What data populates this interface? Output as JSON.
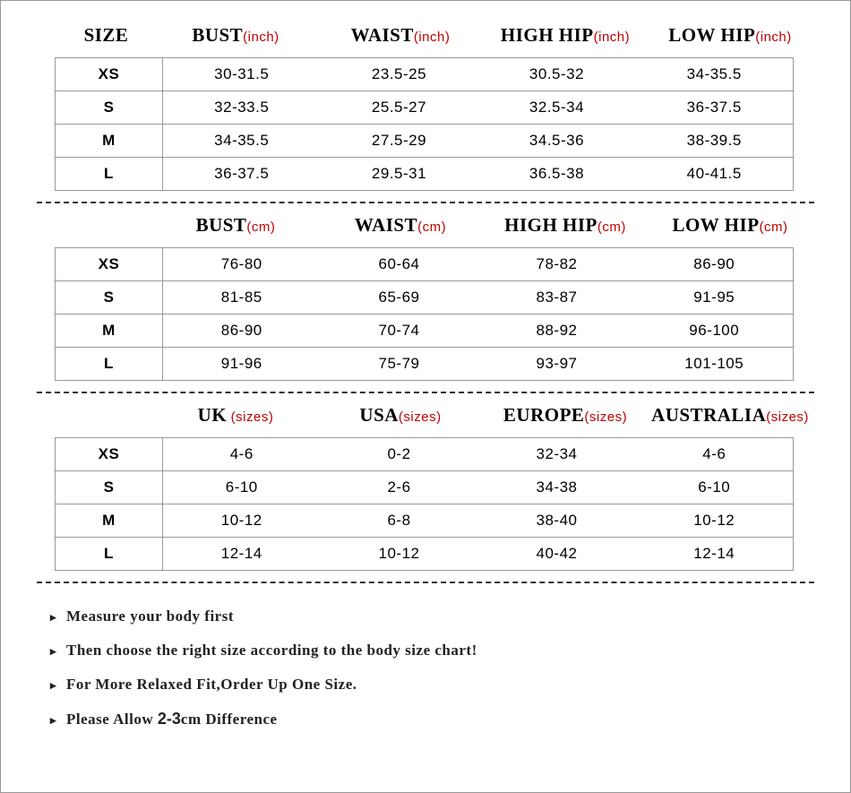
{
  "colors": {
    "border": "#999999",
    "text": "#000000",
    "unit": "#c00000",
    "dash": "#333333",
    "background": "#ffffff"
  },
  "typography": {
    "header_font": "Georgia",
    "data_font": "Verdana",
    "header_size_pt": 21,
    "unit_size_pt": 15,
    "data_size_pt": 17,
    "note_size_pt": 17
  },
  "size_header": "SIZE",
  "sizes": [
    "XS",
    "S",
    "M",
    "L"
  ],
  "sections": [
    {
      "show_size_header": true,
      "columns": [
        {
          "label": "BUST",
          "unit": "(inch)"
        },
        {
          "label": "WAIST",
          "unit": "(inch)"
        },
        {
          "label": "HIGH HIP",
          "unit": "(inch)"
        },
        {
          "label": "LOW HIP",
          "unit": "(inch)"
        }
      ],
      "rows": [
        [
          "30-31.5",
          "23.5-25",
          "30.5-32",
          "34-35.5"
        ],
        [
          "32-33.5",
          "25.5-27",
          "32.5-34",
          "36-37.5"
        ],
        [
          "34-35.5",
          "27.5-29",
          "34.5-36",
          "38-39.5"
        ],
        [
          "36-37.5",
          "29.5-31",
          "36.5-38",
          "40-41.5"
        ]
      ]
    },
    {
      "show_size_header": false,
      "columns": [
        {
          "label": "BUST",
          "unit": "(cm)"
        },
        {
          "label": "WAIST",
          "unit": "(cm)"
        },
        {
          "label": "HIGH HIP",
          "unit": "(cm)"
        },
        {
          "label": "LOW HIP",
          "unit": "(cm)"
        }
      ],
      "rows": [
        [
          "76-80",
          "60-64",
          "78-82",
          "86-90"
        ],
        [
          "81-85",
          "65-69",
          "83-87",
          "91-95"
        ],
        [
          "86-90",
          "70-74",
          "88-92",
          "96-100"
        ],
        [
          "91-96",
          "75-79",
          "93-97",
          "101-105"
        ]
      ]
    },
    {
      "show_size_header": false,
      "columns": [
        {
          "label": "UK",
          "unit": "(sizes)"
        },
        {
          "label": "USA",
          "unit": "(sizes)"
        },
        {
          "label": "EUROPE",
          "unit": "(sizes)"
        },
        {
          "label": "AUSTRALIA",
          "unit": "(sizes)"
        }
      ],
      "rows": [
        [
          "4-6",
          "0-2",
          "32-34",
          "4-6"
        ],
        [
          "6-10",
          "2-6",
          "34-38",
          "6-10"
        ],
        [
          "10-12",
          "6-8",
          "38-40",
          "10-12"
        ],
        [
          "12-14",
          "10-12",
          "40-42",
          "12-14"
        ]
      ]
    }
  ],
  "notes": [
    "Measure your body first",
    "Then choose the right size according to the body size chart!",
    "For More Relaxed Fit,Order Up One Size.",
    "Please Allow 2-3cm Difference"
  ],
  "note_digits": "2-3",
  "bullet": "▸"
}
